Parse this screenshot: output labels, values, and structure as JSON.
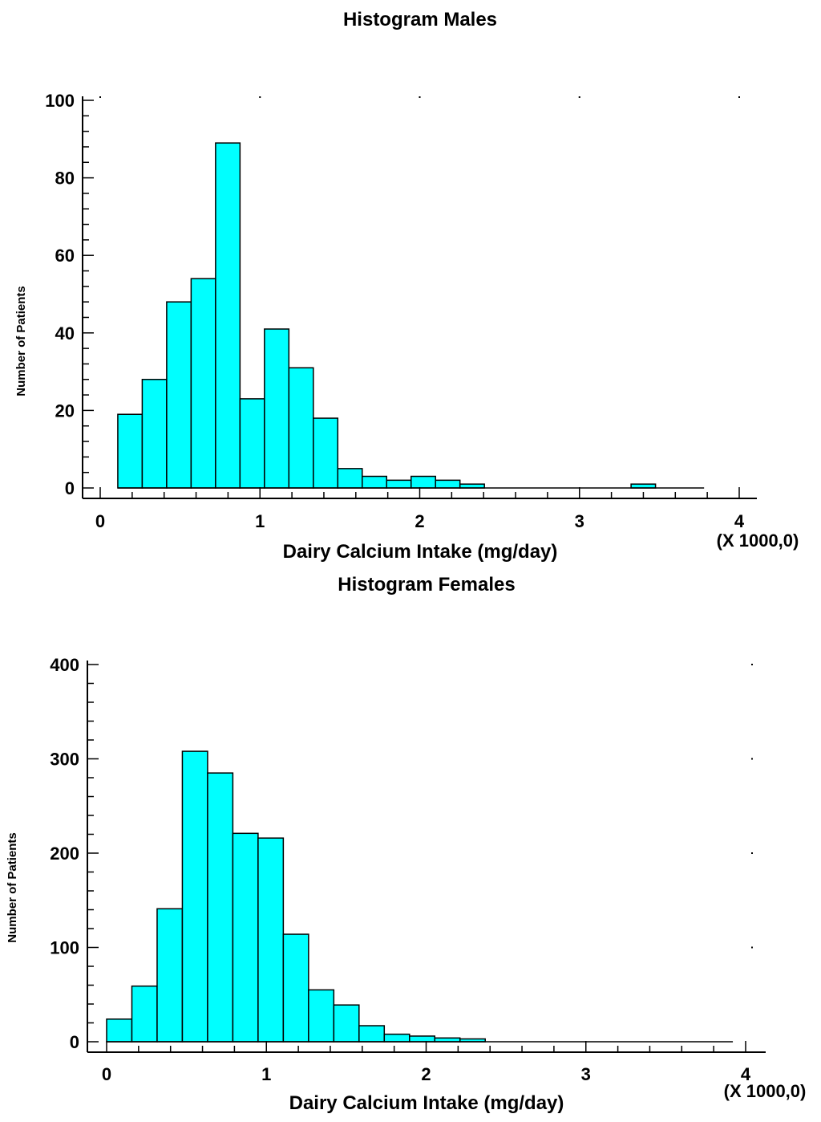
{
  "chart_data": [
    {
      "type": "bar",
      "title": "Histogram Males",
      "xlabel": "Dairy Calcium Intake (mg/day)",
      "ylabel": "Number of Patients",
      "x_multiplier_label": "(X 1000,0)",
      "xlim": [
        0,
        4
      ],
      "ylim": [
        0,
        100
      ],
      "x_ticks": [
        "0",
        "1",
        "2",
        "3",
        "4"
      ],
      "y_ticks": [
        "0",
        "20",
        "40",
        "60",
        "80",
        "100"
      ],
      "bin_start": 0.11,
      "bin_width": 0.153,
      "x_range_end": 3.78,
      "values": [
        19,
        28,
        48,
        54,
        89,
        23,
        41,
        31,
        18,
        5,
        3,
        2,
        3,
        2,
        1,
        0,
        0,
        0,
        0,
        0,
        0,
        1,
        0,
        0
      ],
      "bar_color": "#00ffff",
      "grid": false
    },
    {
      "type": "bar",
      "title": "Histogram Females",
      "xlabel": "Dairy Calcium Intake (mg/day)",
      "ylabel": "Number of Patients",
      "x_multiplier_label": "(X 1000,0)",
      "xlim": [
        0,
        4
      ],
      "ylim": [
        0,
        400
      ],
      "x_ticks": [
        "0",
        "1",
        "2",
        "3",
        "4"
      ],
      "y_ticks": [
        "0",
        "100",
        "200",
        "300",
        "400"
      ],
      "bin_start": 0.0,
      "bin_width": 0.158,
      "x_range_end": 3.92,
      "values": [
        24,
        59,
        141,
        308,
        285,
        221,
        216,
        114,
        55,
        39,
        17,
        8,
        6,
        4,
        3,
        0,
        0,
        0,
        0,
        0,
        0,
        0,
        0,
        0,
        0
      ],
      "bar_color": "#00ffff",
      "grid": false
    }
  ]
}
